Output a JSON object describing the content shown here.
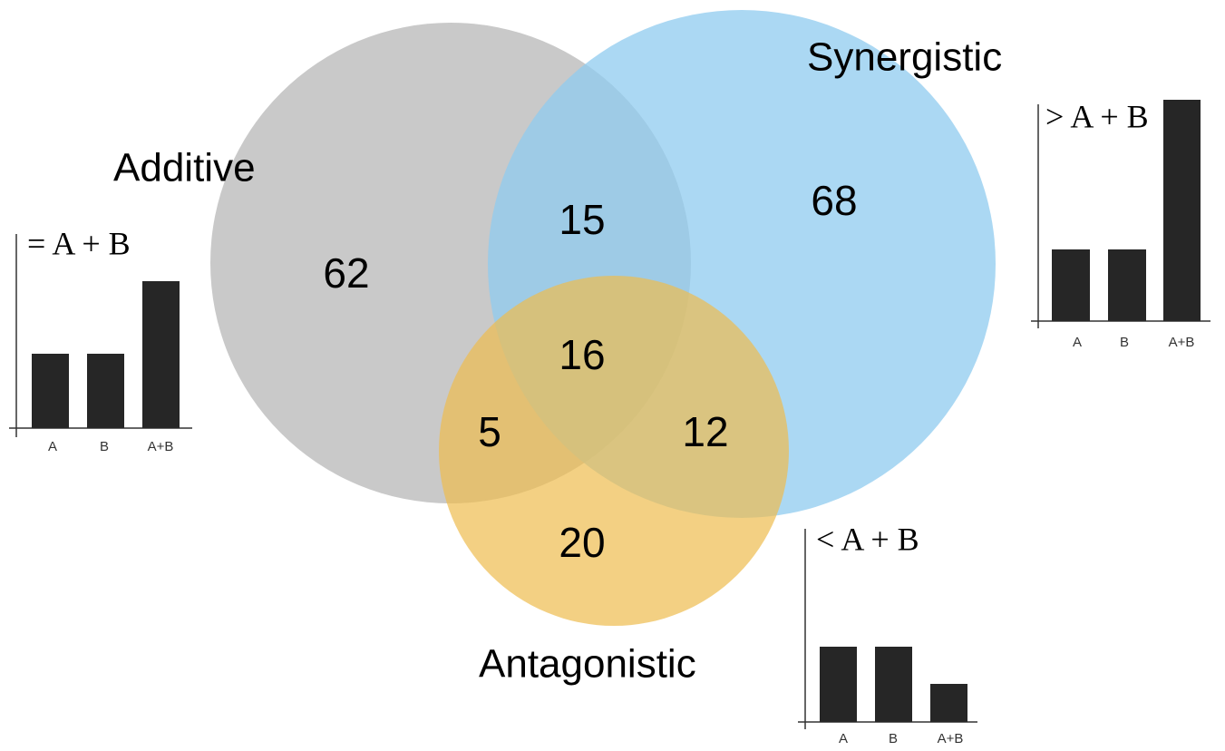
{
  "sets": [
    {
      "label": "Additive"
    },
    {
      "label": "Synergistic"
    },
    {
      "label": "Antagonistic"
    }
  ],
  "region_counts": [
    62,
    15,
    68,
    16,
    5,
    12,
    20
  ],
  "insets": [
    {
      "formula": "= A + B",
      "bar_labels": [
        "A",
        "B",
        "A+B"
      ]
    },
    {
      "formula": "> A + B",
      "bar_labels": [
        "A",
        "B",
        "A+B"
      ]
    },
    {
      "formula": "< A + B",
      "bar_labels": [
        "A",
        "B",
        "A+B"
      ]
    }
  ]
}
